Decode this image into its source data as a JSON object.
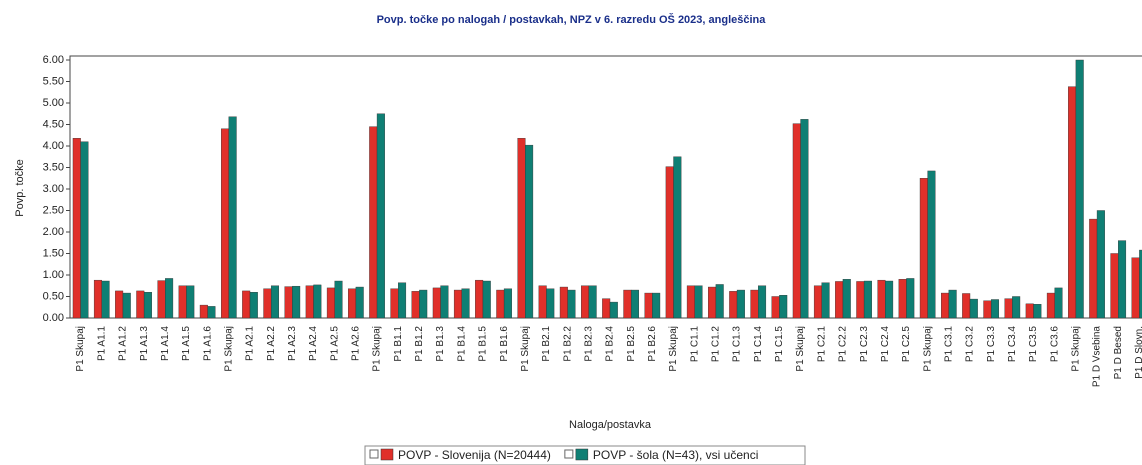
{
  "chart_data": {
    "type": "bar",
    "title": "Povp. točke po nalogah / postavkah, NPZ v 6. razredu OŠ 2023, angleščina",
    "xlabel": "Naloga/postavka",
    "ylabel": "Povp. točke",
    "categories": [
      "P1 Skupaj",
      "P1 A1.1",
      "P1 A1.2",
      "P1 A1.3",
      "P1 A1.4",
      "P1 A1.5",
      "P1 A1.6",
      "P1 Skupaj",
      "P1 A2.1",
      "P1 A2.2",
      "P1 A2.3",
      "P1 A2.4",
      "P1 A2.5",
      "P1 A2.6",
      "P1 Skupaj",
      "P1 B1.1",
      "P1 B1.2",
      "P1 B1.3",
      "P1 B1.4",
      "P1 B1.5",
      "P1 B1.6",
      "P1 Skupaj",
      "P1 B2.1",
      "P1 B2.2",
      "P1 B2.3",
      "P1 B2.4",
      "P1 B2.5",
      "P1 B2.6",
      "P1 Skupaj",
      "P1 C1.1",
      "P1 C1.2",
      "P1 C1.3",
      "P1 C1.4",
      "P1 C1.5",
      "P1 Skupaj",
      "P1 C2.1",
      "P1 C2.2",
      "P1 C2.3",
      "P1 C2.4",
      "P1 C2.5",
      "P1 Skupaj",
      "P1 C3.1",
      "P1 C3.2",
      "P1 C3.3",
      "P1 C3.4",
      "P1 C3.5",
      "P1 C3.6",
      "P1 Skupaj",
      "P1 D Vsebina",
      "P1 D Besed",
      "P1 D Slovn."
    ],
    "series": [
      {
        "name": "POVP - Slovenija (N=20444)",
        "color": "#e0302a",
        "values": [
          4.18,
          0.88,
          0.63,
          0.63,
          0.87,
          0.75,
          0.3,
          4.4,
          0.63,
          0.68,
          0.73,
          0.75,
          0.7,
          0.68,
          4.45,
          0.68,
          0.62,
          0.7,
          0.65,
          0.88,
          0.65,
          4.18,
          0.75,
          0.72,
          0.75,
          0.45,
          0.65,
          0.58,
          3.52,
          0.75,
          0.72,
          0.62,
          0.65,
          0.5,
          4.52,
          0.75,
          0.85,
          0.85,
          0.88,
          0.9,
          3.25,
          0.58,
          0.57,
          0.4,
          0.45,
          0.33,
          0.58,
          5.38,
          2.3,
          1.5,
          1.4
        ]
      },
      {
        "name": "POVP - šola (N=43), vsi učenci",
        "color": "#0f7f74",
        "values": [
          4.1,
          0.86,
          0.58,
          0.6,
          0.92,
          0.75,
          0.27,
          4.68,
          0.6,
          0.75,
          0.74,
          0.77,
          0.86,
          0.72,
          4.75,
          0.82,
          0.65,
          0.75,
          0.68,
          0.86,
          0.68,
          4.02,
          0.68,
          0.65,
          0.75,
          0.37,
          0.65,
          0.58,
          3.75,
          0.75,
          0.78,
          0.65,
          0.75,
          0.53,
          4.62,
          0.82,
          0.9,
          0.86,
          0.86,
          0.92,
          3.42,
          0.65,
          0.44,
          0.43,
          0.5,
          0.32,
          0.7,
          6.0,
          2.5,
          1.8,
          1.58
        ]
      }
    ],
    "ylim": [
      0,
      6
    ],
    "yticks": [
      {
        "value": 0,
        "label": "0.00"
      },
      {
        "value": 0.5,
        "label": "0.50"
      },
      {
        "value": 1,
        "label": "1.00"
      },
      {
        "value": 1.5,
        "label": "1.50"
      },
      {
        "value": 2,
        "label": "2.00"
      },
      {
        "value": 2.5,
        "label": "2.50"
      },
      {
        "value": 3,
        "label": "3.00"
      },
      {
        "value": 3.5,
        "label": "3.50"
      },
      {
        "value": 4,
        "label": "4.00"
      },
      {
        "value": 4.5,
        "label": "4.50"
      },
      {
        "value": 5,
        "label": "5.00"
      },
      {
        "value": 5.5,
        "label": "5.50"
      },
      {
        "value": 6,
        "label": "6.00"
      }
    ],
    "grid": false
  }
}
